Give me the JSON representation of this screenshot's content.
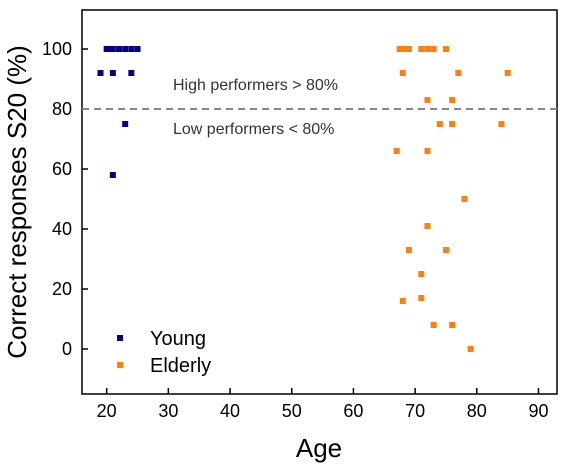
{
  "chart_data": {
    "type": "scatter",
    "xlabel": "Age",
    "ylabel": "Correct responses S20 (%)",
    "xlim": [
      16,
      93
    ],
    "ylim": [
      -15,
      113
    ],
    "xticks": [
      20,
      30,
      40,
      50,
      60,
      70,
      80,
      90
    ],
    "yticks": [
      0,
      20,
      40,
      60,
      80,
      100
    ],
    "threshold": {
      "value": 80,
      "label_above": "High performers > 80%",
      "label_below": "Low performers < 80%"
    },
    "legend_position": "bottom-left",
    "series": [
      {
        "name": "Young",
        "color": "#00008b",
        "points": [
          [
            19,
            92
          ],
          [
            20,
            100
          ],
          [
            20.5,
            100
          ],
          [
            21,
            100
          ],
          [
            21,
            92
          ],
          [
            21,
            58
          ],
          [
            22,
            100
          ],
          [
            23,
            100
          ],
          [
            23,
            75
          ],
          [
            24,
            100
          ],
          [
            24,
            92
          ],
          [
            25,
            100
          ]
        ]
      },
      {
        "name": "Elderly",
        "color": "#ff7f0e",
        "points": [
          [
            67,
            66
          ],
          [
            67.5,
            100
          ],
          [
            68,
            100
          ],
          [
            68,
            92
          ],
          [
            68,
            16
          ],
          [
            69,
            100
          ],
          [
            69,
            33
          ],
          [
            71,
            100
          ],
          [
            71,
            25
          ],
          [
            71,
            17
          ],
          [
            72,
            100
          ],
          [
            72,
            83
          ],
          [
            72,
            66
          ],
          [
            72,
            41
          ],
          [
            73,
            100
          ],
          [
            73,
            8
          ],
          [
            74,
            75
          ],
          [
            75,
            100
          ],
          [
            75,
            33
          ],
          [
            76,
            83
          ],
          [
            76,
            75
          ],
          [
            76,
            8
          ],
          [
            77,
            92
          ],
          [
            78,
            50
          ],
          [
            79,
            0
          ],
          [
            84,
            75
          ],
          [
            85,
            92
          ]
        ]
      }
    ]
  }
}
